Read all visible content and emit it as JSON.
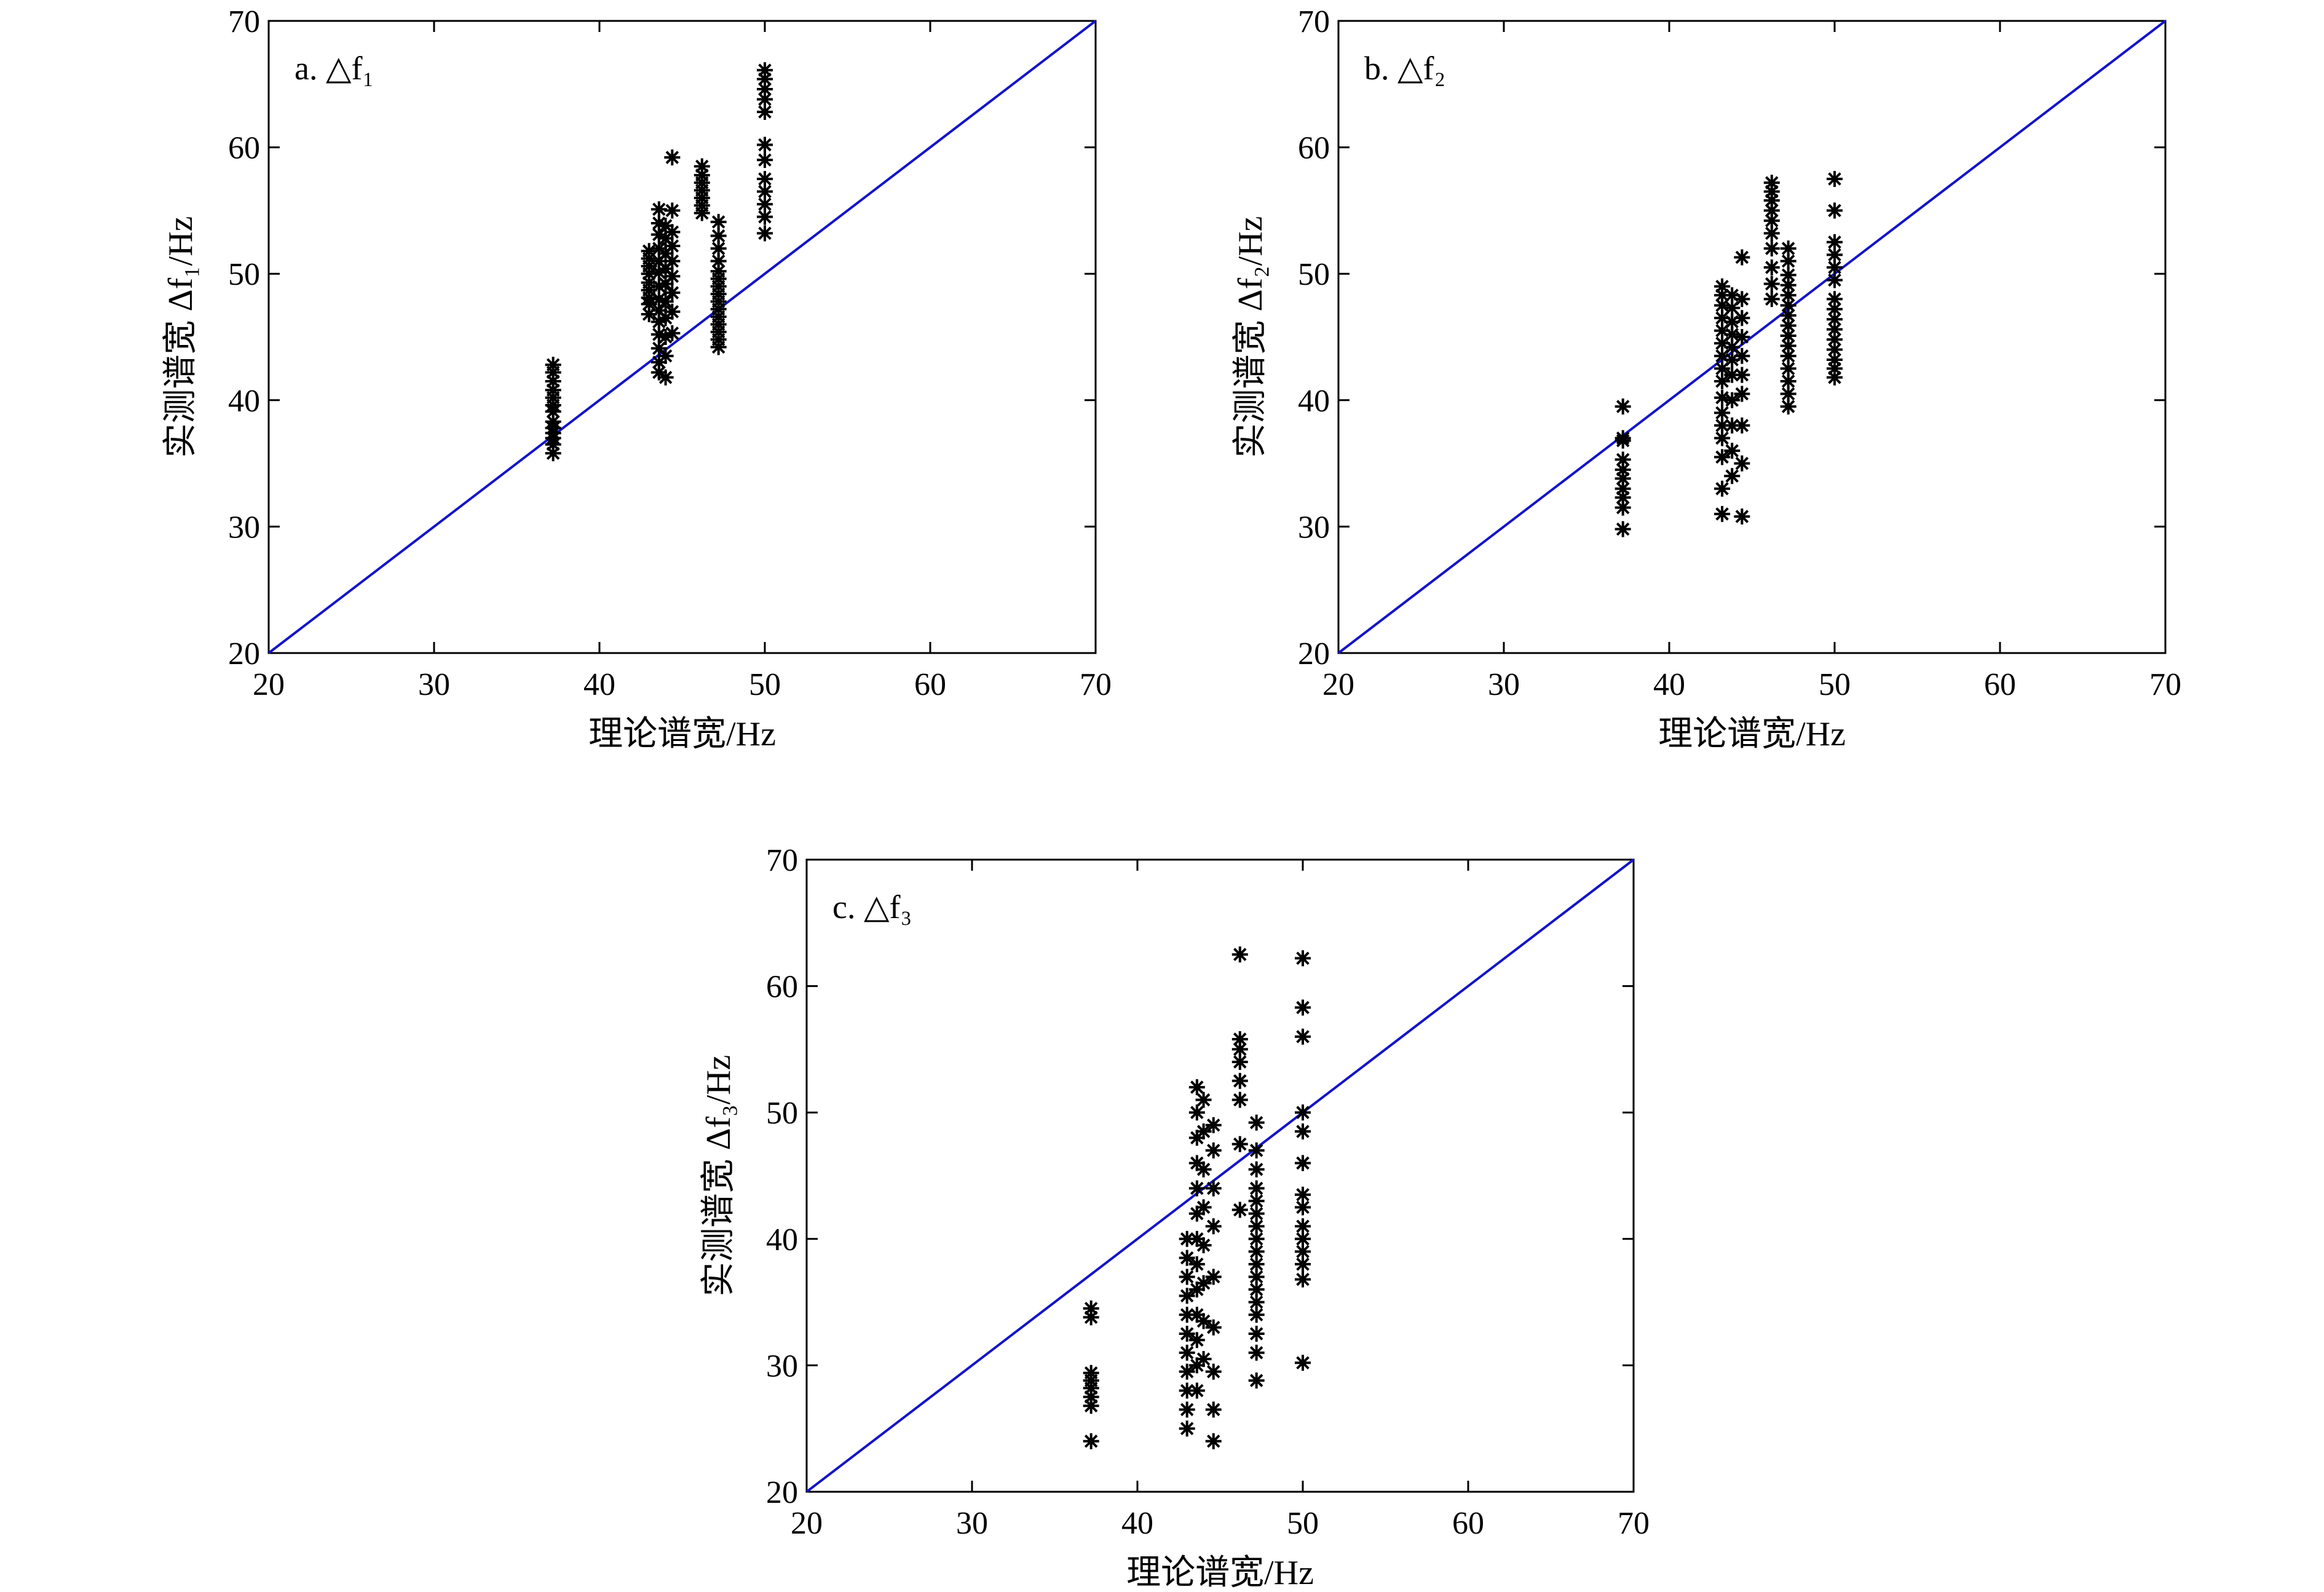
{
  "chart_data": [
    {
      "type": "scatter",
      "panel_label": "a. △f₁",
      "xlabel": "理论谱宽/Hz",
      "ylabel": "实测谱宽 Δf₁/Hz",
      "xlim": [
        20,
        70
      ],
      "ylim": [
        20,
        70
      ],
      "xticks": [
        20,
        30,
        40,
        50,
        60,
        70
      ],
      "yticks": [
        20,
        30,
        40,
        50,
        60,
        70
      ],
      "reference_line": {
        "from": [
          20,
          20
        ],
        "to": [
          70,
          70
        ],
        "color": "#1414c8"
      },
      "marker": "*",
      "groups": [
        {
          "x": 37.2,
          "y": [
            35.8,
            36.5,
            37.0,
            37.4,
            37.8,
            38.3,
            39.1,
            39.6,
            40.2,
            40.8,
            41.5,
            42.2,
            42.8
          ]
        },
        {
          "x": 43.0,
          "y": [
            46.8,
            47.6,
            48.1,
            48.7,
            49.3,
            50.0,
            50.6,
            51.2,
            51.8
          ]
        },
        {
          "x": 43.6,
          "y": [
            42.2,
            43.0,
            44.1,
            45.2,
            46.2,
            47.1,
            48.0,
            49.0,
            50.1,
            51.0,
            52.0,
            53.1,
            54.0,
            55.1
          ]
        },
        {
          "x": 44.0,
          "y": [
            41.8,
            43.5,
            45.0,
            46.5,
            47.8,
            49.2,
            50.4,
            51.6,
            52.8,
            53.8
          ]
        },
        {
          "x": 44.4,
          "y": [
            45.3,
            47.0,
            48.5,
            49.8,
            51.0,
            52.2,
            53.3,
            55.0,
            59.2
          ]
        },
        {
          "x": 46.2,
          "y": [
            54.8,
            55.4,
            56.0,
            56.6,
            57.2,
            57.8,
            58.5
          ]
        },
        {
          "x": 47.2,
          "y": [
            44.2,
            44.8,
            45.4,
            46.0,
            46.6,
            47.2,
            47.8,
            48.4,
            49.0,
            49.6,
            50.2,
            51.0,
            52.0,
            53.0,
            54.1
          ]
        },
        {
          "x": 50.0,
          "y": [
            53.2,
            54.5,
            55.5,
            56.5,
            57.5,
            59.0,
            60.2,
            62.8,
            63.8,
            64.6,
            65.4,
            66.1
          ]
        }
      ]
    },
    {
      "type": "scatter",
      "panel_label": "b. △f₂",
      "xlabel": "理论谱宽/Hz",
      "ylabel": "实测谱宽 Δf₂/Hz",
      "xlim": [
        20,
        70
      ],
      "ylim": [
        20,
        70
      ],
      "xticks": [
        20,
        30,
        40,
        50,
        60,
        70
      ],
      "yticks": [
        20,
        30,
        40,
        50,
        60,
        70
      ],
      "reference_line": {
        "from": [
          20,
          20
        ],
        "to": [
          70,
          70
        ],
        "color": "#1414c8"
      },
      "marker": "*",
      "groups": [
        {
          "x": 37.2,
          "y": [
            29.8,
            31.5,
            32.3,
            33.0,
            33.8,
            34.5,
            35.3,
            36.8,
            37.0,
            39.5
          ]
        },
        {
          "x": 43.2,
          "y": [
            31.0,
            33.0,
            35.5,
            37.0,
            38.0,
            39.0,
            40.2,
            41.5,
            42.5,
            43.5,
            44.5,
            45.5,
            46.5,
            47.5,
            48.3,
            49.0
          ]
        },
        {
          "x": 43.8,
          "y": [
            34.0,
            36.0,
            38.0,
            40.0,
            42.0,
            43.2,
            44.2,
            45.2,
            46.2,
            47.3,
            48.3
          ]
        },
        {
          "x": 44.4,
          "y": [
            30.8,
            35.0,
            38.0,
            40.5,
            42.0,
            43.5,
            45.0,
            46.5,
            48.0,
            51.3
          ]
        },
        {
          "x": 46.2,
          "y": [
            48.0,
            49.2,
            50.5,
            52.0,
            53.2,
            54.2,
            55.0,
            55.8,
            56.5,
            57.2
          ]
        },
        {
          "x": 47.2,
          "y": [
            39.5,
            40.5,
            41.5,
            42.5,
            43.5,
            44.3,
            45.1,
            45.9,
            46.7,
            47.5,
            48.3,
            49.1,
            49.9,
            51.0,
            52.0
          ]
        },
        {
          "x": 50.0,
          "y": [
            41.8,
            42.5,
            43.2,
            44.0,
            44.8,
            45.6,
            46.4,
            47.2,
            48.0,
            49.5,
            50.5,
            51.5,
            52.5,
            55.0,
            57.5
          ]
        }
      ]
    },
    {
      "type": "scatter",
      "panel_label": "c. △f₃",
      "xlabel": "理论谱宽/Hz",
      "ylabel": "实测谱宽 Δf₃/Hz",
      "xlim": [
        20,
        70
      ],
      "ylim": [
        20,
        70
      ],
      "xticks": [
        20,
        30,
        40,
        50,
        60,
        70
      ],
      "yticks": [
        20,
        30,
        40,
        50,
        60,
        70
      ],
      "reference_line": {
        "from": [
          20,
          20
        ],
        "to": [
          70,
          70
        ],
        "color": "#1414c8"
      },
      "marker": "*",
      "groups": [
        {
          "x": 37.2,
          "y": [
            24.0,
            26.8,
            27.5,
            28.2,
            28.8,
            29.4,
            33.8,
            34.5
          ]
        },
        {
          "x": 43.0,
          "y": [
            25.0,
            26.5,
            28.0,
            29.5,
            31.0,
            32.5,
            34.0,
            35.5,
            37.0,
            38.5,
            40.0
          ]
        },
        {
          "x": 43.6,
          "y": [
            28.0,
            30.0,
            32.0,
            34.0,
            36.0,
            38.0,
            40.0,
            42.0,
            44.0,
            46.0,
            48.0,
            50.0,
            52.0
          ]
        },
        {
          "x": 44.0,
          "y": [
            30.5,
            33.5,
            36.5,
            39.5,
            42.5,
            45.5,
            48.5,
            51.0
          ]
        },
        {
          "x": 44.6,
          "y": [
            24.0,
            26.5,
            29.5,
            33.0,
            37.0,
            41.0,
            44.0,
            47.0,
            49.0
          ]
        },
        {
          "x": 46.2,
          "y": [
            42.3,
            47.5,
            51.0,
            52.5,
            54.0,
            55.0,
            55.8,
            62.5
          ]
        },
        {
          "x": 47.2,
          "y": [
            28.8,
            31.0,
            32.5,
            34.0,
            35.0,
            36.0,
            37.0,
            38.0,
            39.0,
            40.0,
            41.0,
            42.0,
            43.0,
            44.0,
            45.5,
            47.0,
            49.2
          ]
        },
        {
          "x": 50.0,
          "y": [
            30.2,
            36.8,
            38.0,
            39.0,
            40.0,
            41.0,
            42.5,
            43.5,
            46.0,
            48.5,
            50.0,
            56.0,
            58.3,
            62.2
          ]
        }
      ]
    }
  ]
}
